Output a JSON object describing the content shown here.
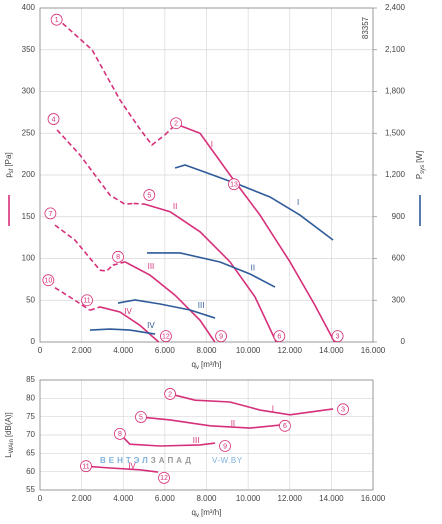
{
  "chart_data": [
    {
      "type": "line",
      "id_text": "83357",
      "ylabel": {
        "symbol": "p",
        "sub": "sf",
        "unit": "[Pa]"
      },
      "y2label": {
        "symbol": "P",
        "sub": "sys",
        "unit": "[W]"
      },
      "xlabel": {
        "symbol": "q",
        "sub": "v",
        "unit": "[m³/h]"
      },
      "xlim": [
        0,
        16000
      ],
      "xticks": [
        0,
        {
          "value": 2000,
          "label": "2.000"
        },
        {
          "value": 4000,
          "label": "4.000"
        },
        {
          "value": 6000,
          "label": "6.000"
        },
        {
          "value": 8000,
          "label": "8.000"
        },
        {
          "value": 10000,
          "label": "10.000"
        },
        {
          "value": 12000,
          "label": "12.000"
        },
        {
          "value": 14000,
          "label": "14.000"
        },
        {
          "value": 16000,
          "label": "16.000"
        }
      ],
      "ylim": [
        0,
        400
      ],
      "yticks": [
        0,
        50,
        100,
        150,
        200,
        250,
        300,
        350,
        400
      ],
      "y2lim": [
        0,
        2400
      ],
      "y2ticks": [
        0,
        300,
        600,
        900,
        {
          "value": 1200,
          "label": "1,200"
        },
        {
          "value": 1500,
          "label": "1,500"
        },
        {
          "value": 1800,
          "label": "1,800"
        },
        {
          "value": 2100,
          "label": "2,100"
        },
        {
          "value": 2400,
          "label": "2,400"
        }
      ],
      "grid": true,
      "series": [
        {
          "name": "I",
          "color": "#d6307a",
          "dashed_points": 6,
          "label_at": [
            8260,
            236
          ],
          "x": [
            800,
            2500,
            3840,
            4800,
            5380,
            6000,
            6535,
            7690,
            9130,
            10570,
            12010,
            13210,
            14150
          ],
          "values": [
            388,
            350,
            290,
            255,
            236,
            248,
            261,
            250,
            200,
            152,
            96,
            44,
            0
          ]
        },
        {
          "name": "II",
          "color": "#d6307a",
          "dashed_points": 5,
          "label_at": [
            6490,
            162
          ],
          "x": [
            820,
            1920,
            3360,
            4080,
            4500,
            5045,
            6250,
            7690,
            9130,
            10330,
            11350
          ],
          "values": [
            254,
            224,
            176,
            165,
            166,
            165,
            156,
            132,
            96,
            54,
            0
          ]
        },
        {
          "name": "III",
          "color": "#d6307a",
          "dashed_points": 5,
          "label_at": [
            5330,
            90
          ],
          "x": [
            720,
            1680,
            2880,
            3200,
            3500,
            4080,
            5290,
            6490,
            7690,
            8400
          ],
          "values": [
            140,
            122,
            86,
            85,
            92,
            96,
            80,
            56,
            26,
            0
          ]
        },
        {
          "name": "IV",
          "color": "#d6307a",
          "dashed_points": 3,
          "label_at": [
            4230,
            36
          ],
          "x": [
            720,
            1680,
            2400,
            2880,
            3840,
            4800,
            5700
          ],
          "values": [
            65,
            50,
            38,
            42,
            36,
            20,
            0
          ]
        },
        {
          "name": "I",
          "color": "#2f5b9a",
          "axis": "y2",
          "label_at": [
            12400,
            1000
          ],
          "x": [
            6490,
            6970,
            8170,
            9610,
            11050,
            12490,
            14080
          ],
          "values": [
            1250,
            1272,
            1207,
            1128,
            1042,
            912,
            733
          ]
        },
        {
          "name": "II",
          "color": "#2f5b9a",
          "axis": "y2",
          "label_at": [
            10230,
            530
          ],
          "x": [
            5140,
            6730,
            8650,
            10090,
            11290
          ],
          "values": [
            640,
            640,
            575,
            489,
            395
          ]
        },
        {
          "name": "III",
          "color": "#2f5b9a",
          "axis": "y2",
          "label_at": [
            7740,
            260
          ],
          "x": [
            3750,
            4560,
            5770,
            7210,
            8410
          ],
          "values": [
            280,
            302,
            273,
            230,
            172
          ]
        },
        {
          "name": "IV",
          "color": "#2f5b9a",
          "axis": "y2",
          "label_at": [
            5330,
            115
          ],
          "x": [
            2400,
            3360,
            4320,
            5530
          ],
          "values": [
            86,
            93,
            86,
            57
          ]
        }
      ],
      "annotations": [
        {
          "text": "1",
          "x": 800,
          "y": 386
        },
        {
          "text": "2",
          "x": 6540,
          "y": 262
        },
        {
          "text": "3",
          "x": 14300,
          "y": 7
        },
        {
          "text": "4",
          "x": 650,
          "y": 267
        },
        {
          "text": "5",
          "x": 5250,
          "y": 176
        },
        {
          "text": "6",
          "x": 11500,
          "y": 7
        },
        {
          "text": "7",
          "x": 500,
          "y": 154
        },
        {
          "text": "8",
          "x": 3750,
          "y": 102
        },
        {
          "text": "9",
          "x": 8700,
          "y": 7
        },
        {
          "text": "10",
          "x": 400,
          "y": 74
        },
        {
          "text": "11",
          "x": 2260,
          "y": 50
        },
        {
          "text": "12",
          "x": 6050,
          "y": 7
        },
        {
          "text": "13",
          "x": 9320,
          "y": 189
        }
      ]
    },
    {
      "type": "line",
      "ylabel": {
        "symbol": "L",
        "sub": "WAin",
        "unit": "[dB(A)]"
      },
      "xlabel": {
        "symbol": "q",
        "sub": "v",
        "unit": "[m³/h]"
      },
      "xlim": [
        0,
        16000
      ],
      "xticks": [
        0,
        {
          "value": 2000,
          "label": "2.000"
        },
        {
          "value": 4000,
          "label": "4.000"
        },
        {
          "value": 6000,
          "label": "6.000"
        },
        {
          "value": 8000,
          "label": "8.000"
        },
        {
          "value": 10000,
          "label": "10.000"
        },
        {
          "value": 12000,
          "label": "12.000"
        },
        {
          "value": 14000,
          "label": "14.000"
        },
        {
          "value": 16000,
          "label": "16.000"
        }
      ],
      "ylim": [
        55,
        85
      ],
      "yticks": [
        55,
        60,
        65,
        70,
        75,
        80,
        85
      ],
      "grid": true,
      "watermark": [
        {
          "text": "ВЕНТЭЛ",
          "color": "#7fb2dd"
        },
        {
          "text": "ЗАПАД",
          "color": "#9a9a9a"
        },
        {
          "text": "V-W.BY",
          "color": "#7fb2dd"
        }
      ],
      "series": [
        {
          "name": "I",
          "color": "#d6307a",
          "label_at": [
            11190,
            77
          ],
          "x": [
            6250,
            7450,
            9130,
            10570,
            12010,
            14080
          ],
          "values": [
            81.2,
            79.5,
            79.0,
            76.8,
            75.5,
            77.1
          ]
        },
        {
          "name": "II",
          "color": "#d6307a",
          "label_at": [
            9270,
            73
          ],
          "x": [
            4850,
            6250,
            8170,
            10090,
            11530
          ],
          "values": [
            74.9,
            74.1,
            72.5,
            71.9,
            72.7
          ]
        },
        {
          "name": "III",
          "color": "#d6307a",
          "label_at": [
            7500,
            68.4
          ],
          "x": [
            3840,
            4320,
            5770,
            7690,
            8410
          ],
          "values": [
            70.3,
            67.5,
            67.0,
            67.3,
            67.8
          ]
        },
        {
          "name": "IV",
          "color": "#d6307a",
          "label_at": [
            4420,
            61.5
          ],
          "x": [
            2210,
            3360,
            4800,
            5670
          ],
          "values": [
            61.5,
            61.0,
            60.5,
            59.9
          ]
        }
      ],
      "annotations": [
        {
          "text": "2",
          "x": 6250,
          "y": 81.2
        },
        {
          "text": "3",
          "x": 14560,
          "y": 77.0
        },
        {
          "text": "5",
          "x": 4850,
          "y": 74.9
        },
        {
          "text": "6",
          "x": 11770,
          "y": 72.5
        },
        {
          "text": "8",
          "x": 3840,
          "y": 70.3
        },
        {
          "text": "9",
          "x": 8890,
          "y": 67.0
        },
        {
          "text": "11",
          "x": 2210,
          "y": 61.5
        },
        {
          "text": "12",
          "x": 5960,
          "y": 58.3
        }
      ]
    }
  ]
}
